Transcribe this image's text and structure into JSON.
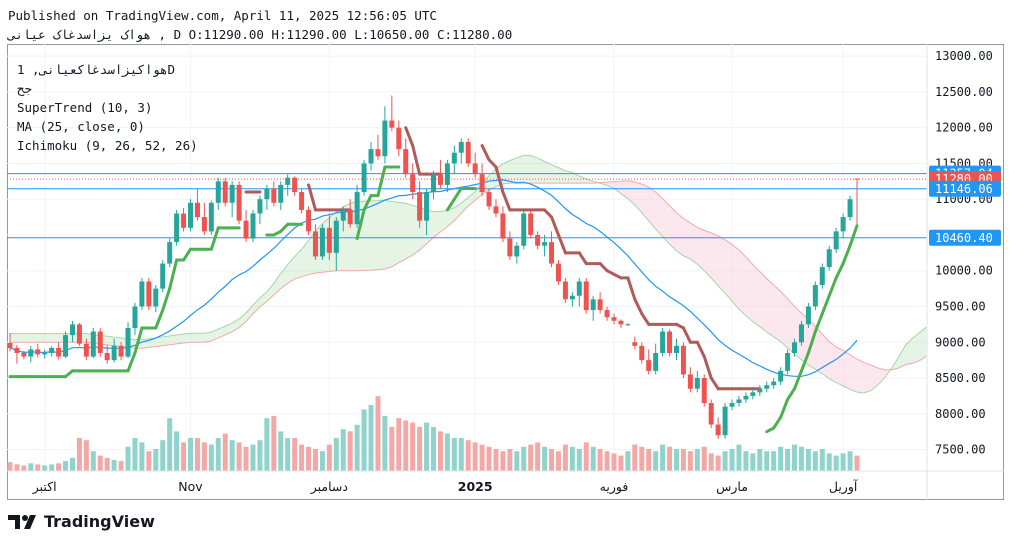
{
  "header": {
    "published": "Published on TradingView.com, April 11, 2025 12:56:05 UTC",
    "symbol": "هواک یزاسدغاک عیانی",
    "ohlc": ", D O:11290.00 H:11290.00 L:10650.00 C:11280.00"
  },
  "legend": {
    "symbol_interval": "هواکیزاسدغاکعیانی, 1D",
    "sub": "ج‬ح",
    "indicators": [
      "SuperTrend (10, 3)",
      "MA (25, close, 0)",
      "Ichimoku (9, 26, 52, 26)"
    ]
  },
  "brand": {
    "name": "TradingView",
    "icon": "tradingview-logo-icon"
  },
  "colors": {
    "up": "#26a69a",
    "down": "#ef5350",
    "vol_up": "#8fd3cb",
    "vol_down": "#f4a8a6",
    "supertrend_up": "#4caf50",
    "supertrend_down": "#b05a5a",
    "ma": "#2196f3",
    "cloud_green": "#a5d6a7",
    "cloud_red": "#f8bbd0"
  },
  "chart_data": {
    "type": "candlestick",
    "y_range": [
      7200,
      13100
    ],
    "y_ticks": [
      "13000.00",
      "12500.00",
      "12000.00",
      "11500.00",
      "11000.00",
      "10500.00",
      "10000.00",
      "9500.00",
      "9000.00",
      "8500.00",
      "8000.00",
      "7500.00"
    ],
    "x_labels": [
      "اکتبر",
      "Nov",
      "دسامبر",
      "2025",
      "فوریه",
      "مارس",
      "آوریل"
    ],
    "price_labels": [
      {
        "text": "11357.04",
        "value": 11357.04,
        "color": "#2196f3"
      },
      {
        "text": "11280.00",
        "value": 11280,
        "color": "#ef5350"
      },
      {
        "text": "11146.06",
        "value": 11146.06,
        "color": "#2196f3"
      },
      {
        "text": "10460.40",
        "value": 10460.4,
        "color": "#2196f3"
      }
    ],
    "horizontal_lines": [
      11357.04,
      11146.06,
      10460.4
    ],
    "candles": [
      [
        8990,
        9130,
        8870,
        8920
      ],
      [
        8920,
        8960,
        8700,
        8850
      ],
      [
        8850,
        8880,
        8760,
        8800
      ],
      [
        8800,
        8950,
        8720,
        8900
      ],
      [
        8900,
        8980,
        8790,
        8830
      ],
      [
        8830,
        8900,
        8770,
        8850
      ],
      [
        8850,
        8950,
        8800,
        8920
      ],
      [
        8920,
        9000,
        8760,
        8800
      ],
      [
        8800,
        9150,
        8780,
        9100
      ],
      [
        9100,
        9300,
        9000,
        9250
      ],
      [
        9250,
        9270,
        8950,
        8980
      ],
      [
        8980,
        9050,
        8750,
        8800
      ],
      [
        8800,
        9200,
        8780,
        9150
      ],
      [
        9150,
        9200,
        8800,
        8850
      ],
      [
        8850,
        8960,
        8700,
        8750
      ],
      [
        8750,
        9050,
        8720,
        8950
      ],
      [
        8950,
        9000,
        8750,
        8800
      ],
      [
        8800,
        9280,
        8780,
        9200
      ],
      [
        9200,
        9550,
        9100,
        9500
      ],
      [
        9500,
        9900,
        9450,
        9850
      ],
      [
        9850,
        9900,
        9450,
        9500
      ],
      [
        9500,
        9800,
        9420,
        9750
      ],
      [
        9750,
        10150,
        9700,
        10100
      ],
      [
        10100,
        10450,
        10050,
        10400
      ],
      [
        10400,
        10850,
        10350,
        10800
      ],
      [
        10800,
        10880,
        10550,
        10600
      ],
      [
        10600,
        11000,
        10550,
        10950
      ],
      [
        10950,
        11150,
        10700,
        10750
      ],
      [
        10750,
        10950,
        10500,
        10550
      ],
      [
        10550,
        10980,
        10500,
        10950
      ],
      [
        10950,
        11300,
        10850,
        11250
      ],
      [
        11250,
        11300,
        10900,
        10950
      ],
      [
        10950,
        11250,
        10750,
        11200
      ],
      [
        11200,
        11250,
        10650,
        10700
      ],
      [
        10700,
        10850,
        10400,
        10450
      ],
      [
        10450,
        10850,
        10400,
        10800
      ],
      [
        10800,
        11050,
        10650,
        11000
      ],
      [
        11000,
        11200,
        10850,
        11150
      ],
      [
        11150,
        11250,
        10900,
        10950
      ],
      [
        10950,
        11250,
        10850,
        11200
      ],
      [
        11200,
        11350,
        11050,
        11300
      ],
      [
        11300,
        11320,
        11050,
        11100
      ],
      [
        11100,
        11150,
        10800,
        10850
      ],
      [
        10850,
        10900,
        10500,
        10550
      ],
      [
        10550,
        10650,
        10150,
        10200
      ],
      [
        10200,
        10650,
        10150,
        10600
      ],
      [
        10600,
        10800,
        10150,
        10250
      ],
      [
        10250,
        10750,
        10000,
        10700
      ],
      [
        10700,
        10900,
        10550,
        10850
      ],
      [
        10850,
        11000,
        10600,
        10650
      ],
      [
        10650,
        11200,
        10600,
        11100
      ],
      [
        11100,
        11550,
        11050,
        11500
      ],
      [
        11500,
        11800,
        11400,
        11700
      ],
      [
        11700,
        11900,
        11550,
        11600
      ],
      [
        11600,
        12300,
        11500,
        12100
      ],
      [
        12100,
        12450,
        11950,
        12000
      ],
      [
        12000,
        12100,
        11600,
        11700
      ],
      [
        11700,
        11850,
        11300,
        11350
      ],
      [
        11350,
        11500,
        11000,
        11100
      ],
      [
        11100,
        11250,
        10600,
        10700
      ],
      [
        10700,
        11150,
        10500,
        11100
      ],
      [
        11100,
        11400,
        11000,
        11350
      ],
      [
        11350,
        11550,
        11150,
        11200
      ],
      [
        11200,
        11550,
        11100,
        11500
      ],
      [
        11500,
        11750,
        11350,
        11650
      ],
      [
        11650,
        11850,
        11500,
        11800
      ],
      [
        11800,
        11850,
        11450,
        11500
      ],
      [
        11500,
        11650,
        11300,
        11350
      ],
      [
        11350,
        11500,
        11050,
        11100
      ],
      [
        11100,
        11150,
        10850,
        10900
      ],
      [
        10900,
        11000,
        10750,
        10800
      ],
      [
        10800,
        10900,
        10400,
        10450
      ],
      [
        10450,
        10550,
        10150,
        10200
      ],
      [
        10200,
        10400,
        10100,
        10350
      ],
      [
        10350,
        10850,
        10300,
        10800
      ],
      [
        10800,
        10850,
        10450,
        10500
      ],
      [
        10500,
        10550,
        10300,
        10350
      ],
      [
        10350,
        10500,
        10200,
        10400
      ],
      [
        10400,
        10550,
        10050,
        10100
      ],
      [
        10100,
        10150,
        9800,
        9850
      ],
      [
        9850,
        9900,
        9550,
        9600
      ],
      [
        9600,
        9700,
        9500,
        9650
      ],
      [
        9650,
        9900,
        9500,
        9850
      ],
      [
        9850,
        9900,
        9400,
        9450
      ],
      [
        9450,
        9650,
        9300,
        9600
      ],
      [
        9600,
        9700,
        9400,
        9450
      ],
      [
        9450,
        9500,
        9300,
        9350
      ],
      [
        9350,
        9400,
        9250,
        9300
      ],
      [
        9300,
        9320,
        9200,
        9250
      ],
      [
        9250,
        9270,
        9230,
        9250
      ],
      [
        9000,
        9080,
        8900,
        8950
      ],
      [
        8950,
        9000,
        8700,
        8750
      ],
      [
        8750,
        8900,
        8550,
        8600
      ],
      [
        8600,
        8980,
        8550,
        8850
      ],
      [
        8850,
        9200,
        8800,
        9150
      ],
      [
        9150,
        9180,
        8800,
        8850
      ],
      [
        8850,
        9050,
        8750,
        8950
      ],
      [
        8950,
        9000,
        8500,
        8550
      ],
      [
        8550,
        8650,
        8300,
        8350
      ],
      [
        8350,
        8600,
        8300,
        8500
      ],
      [
        8500,
        8550,
        8100,
        8150
      ],
      [
        8150,
        8200,
        7800,
        7850
      ],
      [
        7850,
        7950,
        7650,
        7700
      ],
      [
        7700,
        8150,
        7650,
        8100
      ],
      [
        8100,
        8200,
        8050,
        8150
      ],
      [
        8150,
        8250,
        8100,
        8200
      ],
      [
        8200,
        8300,
        8150,
        8250
      ],
      [
        8250,
        8350,
        8200,
        8300
      ],
      [
        8300,
        8400,
        8250,
        8350
      ],
      [
        8350,
        8450,
        8300,
        8400
      ],
      [
        8400,
        8500,
        8350,
        8450
      ],
      [
        8450,
        8650,
        8400,
        8600
      ],
      [
        8600,
        8900,
        8550,
        8850
      ],
      [
        8850,
        9050,
        8800,
        9000
      ],
      [
        9000,
        9300,
        8950,
        9250
      ],
      [
        9250,
        9550,
        9200,
        9500
      ],
      [
        9500,
        9850,
        9450,
        9800
      ],
      [
        9800,
        10100,
        9750,
        10050
      ],
      [
        10050,
        10350,
        10000,
        10300
      ],
      [
        10300,
        10600,
        10250,
        10550
      ],
      [
        10550,
        10800,
        10450,
        10750
      ],
      [
        10750,
        11050,
        10700,
        11000
      ],
      [
        11290,
        11290,
        10650,
        11280
      ]
    ],
    "volume_range": [
      0,
      100
    ],
    "volume": [
      8,
      6,
      5,
      7,
      6,
      5,
      6,
      7,
      9,
      12,
      30,
      28,
      18,
      14,
      12,
      10,
      9,
      22,
      30,
      26,
      18,
      20,
      28,
      48,
      36,
      26,
      30,
      30,
      26,
      24,
      30,
      34,
      28,
      26,
      22,
      24,
      28,
      48,
      50,
      36,
      30,
      30,
      24,
      22,
      20,
      18,
      24,
      30,
      38,
      36,
      42,
      56,
      60,
      68,
      50,
      40,
      48,
      46,
      44,
      40,
      44,
      40,
      36,
      34,
      30,
      30,
      28,
      26,
      24,
      22,
      20,
      18,
      20,
      18,
      22,
      24,
      26,
      22,
      20,
      18,
      24,
      22,
      20,
      26,
      22,
      20,
      18,
      16,
      14,
      18,
      24,
      22,
      20,
      18,
      24,
      22,
      20,
      20,
      18,
      20,
      22,
      16,
      14,
      18,
      20,
      24,
      18,
      16,
      20,
      18,
      18,
      22,
      20,
      24,
      22,
      20,
      18,
      20,
      16,
      14,
      16,
      18,
      14
    ]
  }
}
